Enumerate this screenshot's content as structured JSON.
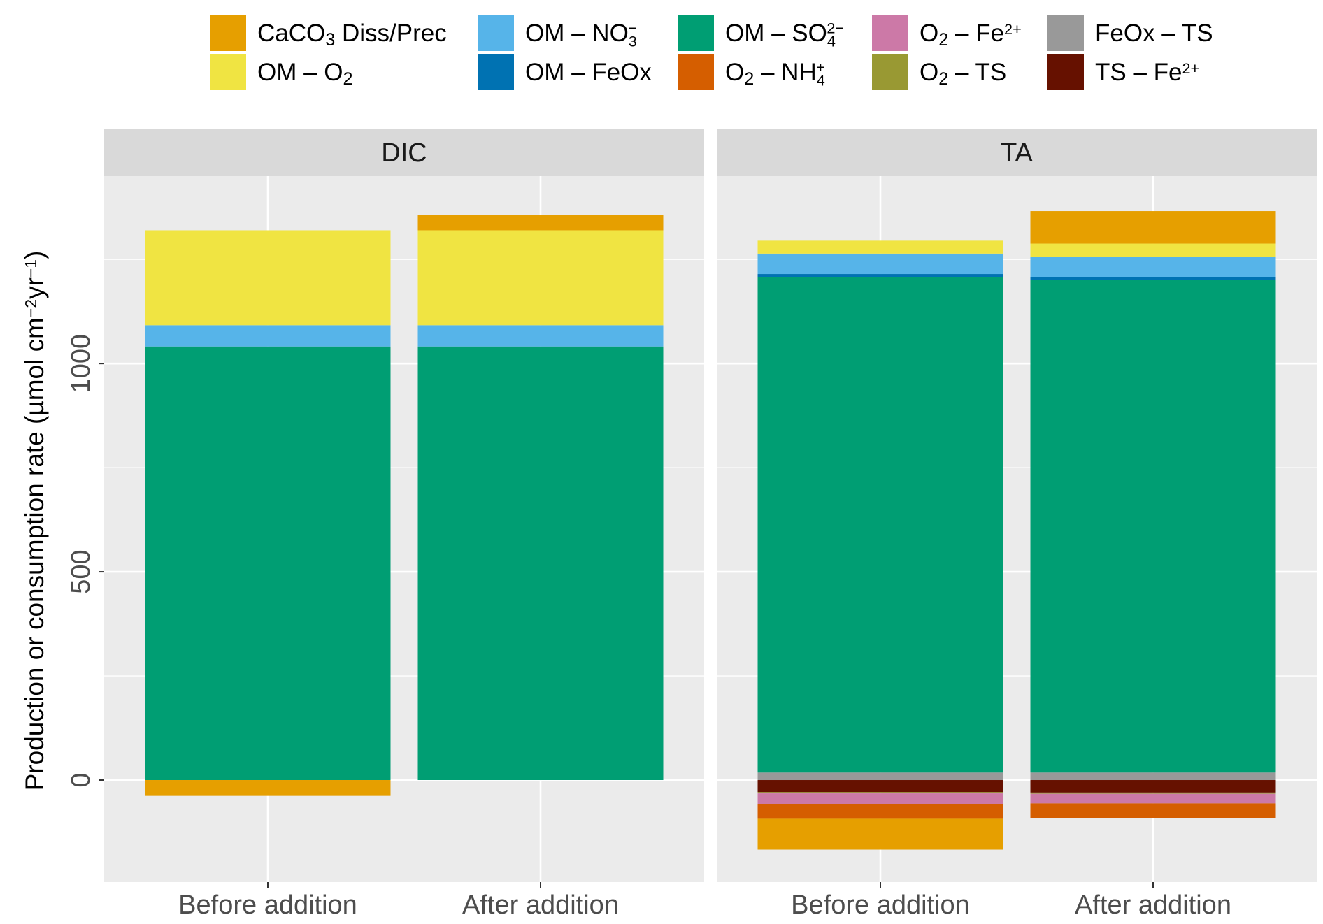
{
  "chart_data": {
    "type": "bar",
    "stacked": true,
    "ylabel": "Production or consumption rate (µmol cm⁻² yr⁻¹)",
    "ylabel_parts": [
      {
        "t": "Production or consumption rate (µmol  cm"
      },
      {
        "sup": "−2"
      },
      {
        "t": "yr"
      },
      {
        "sup": "−1"
      },
      {
        "t": ")"
      }
    ],
    "ylim": [
      -245,
      1450
    ],
    "yticks": [
      0,
      500,
      1000
    ],
    "ytick_labels": [
      "0",
      "500",
      "1000"
    ],
    "grid": true,
    "legend_position": "top",
    "categories": [
      "Before addition",
      "After addition"
    ],
    "series": [
      {
        "name": "CaCO3 Diss/Prec",
        "label_parts": [
          {
            "t": "CaCO"
          },
          {
            "sub": "3"
          },
          {
            "t": " Diss/Prec"
          }
        ],
        "color": "#E69F00"
      },
      {
        "name": "OM – O2",
        "label_parts": [
          {
            "t": "OM – O"
          },
          {
            "sub": "2"
          }
        ],
        "color": "#F0E442"
      },
      {
        "name": "OM – NO3-",
        "label_parts": [
          {
            "t": "OM – NO"
          },
          {
            "subsup": [
              "3",
              "−"
            ]
          }
        ],
        "color": "#56B4E9"
      },
      {
        "name": "OM – FeOx",
        "label_parts": [
          {
            "t": "OM – FeOx"
          }
        ],
        "color": "#0072B2"
      },
      {
        "name": "OM – SO4 2-",
        "label_parts": [
          {
            "t": "OM – SO"
          },
          {
            "subsup": [
              "4",
              "2−"
            ]
          }
        ],
        "color": "#009E73"
      },
      {
        "name": "O2 – NH4+",
        "label_parts": [
          {
            "t": "O"
          },
          {
            "sub": "2"
          },
          {
            "t": " – NH"
          },
          {
            "subsup": [
              "4",
              "+"
            ]
          }
        ],
        "color": "#D55E00"
      },
      {
        "name": "O2 – Fe2+",
        "label_parts": [
          {
            "t": "O"
          },
          {
            "sub": "2"
          },
          {
            "t": " – Fe"
          },
          {
            "sup": "2+"
          }
        ],
        "color": "#CC79A7"
      },
      {
        "name": "O2 – TS",
        "label_parts": [
          {
            "t": "O"
          },
          {
            "sub": "2"
          },
          {
            "t": " – TS"
          }
        ],
        "color": "#999933"
      },
      {
        "name": "FeOx – TS",
        "label_parts": [
          {
            "t": "FeOx – TS"
          }
        ],
        "color": "#999999"
      },
      {
        "name": "TS – Fe2+",
        "label_parts": [
          {
            "t": "TS – Fe"
          },
          {
            "sup": "2+"
          }
        ],
        "color": "#661100"
      }
    ],
    "panels": [
      {
        "title": "DIC",
        "values": {
          "Before addition": [
            -38,
            228,
            51,
            0,
            1041,
            0,
            0,
            0,
            0,
            0
          ],
          "After addition": [
            37,
            228,
            51,
            0,
            1041,
            0,
            0,
            0,
            0,
            0
          ]
        }
      },
      {
        "title": "TA",
        "values": {
          "Before addition": [
            -74,
            31,
            49,
            7,
            1190,
            -36,
            -25,
            -3,
            18,
            -29
          ],
          "After addition": [
            78,
            31,
            49,
            7,
            1183,
            -36,
            -23,
            -3,
            18,
            -30
          ]
        }
      }
    ]
  }
}
